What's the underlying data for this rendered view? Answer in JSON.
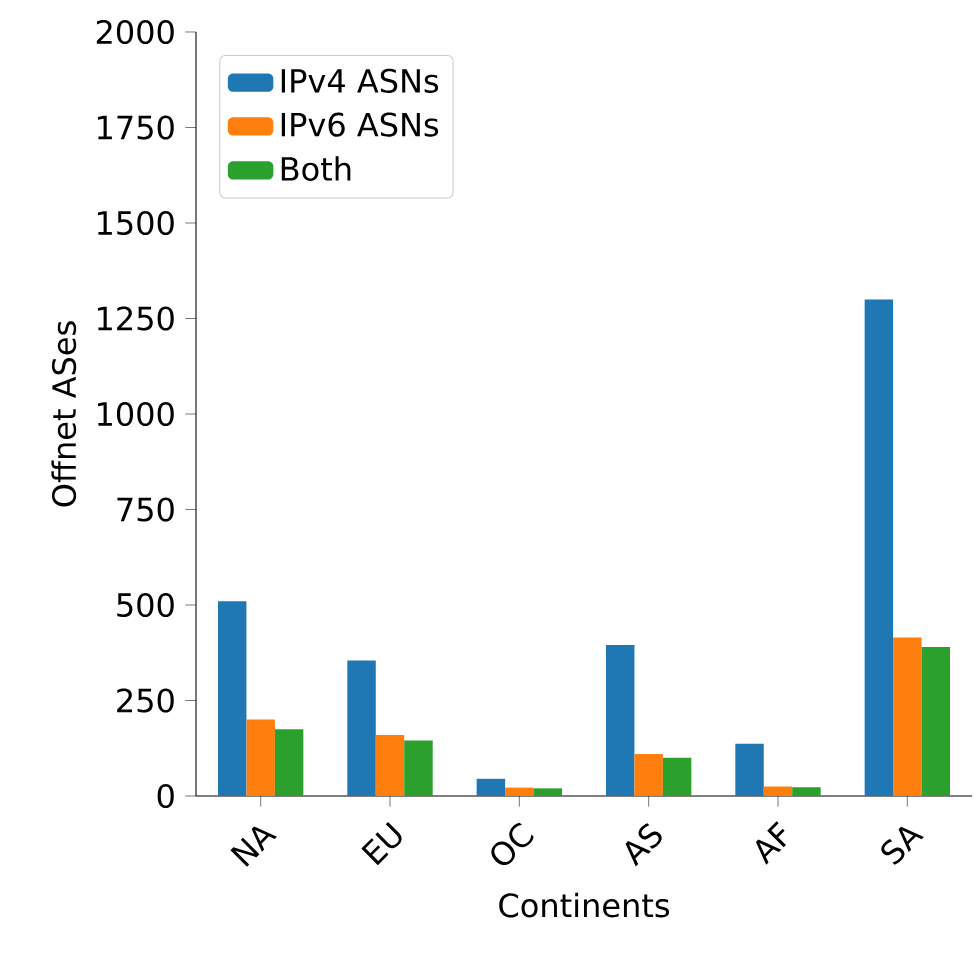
{
  "chart_data": {
    "type": "bar",
    "xlabel": "Continents",
    "ylabel": "Offnet ASes",
    "categories": [
      "NA",
      "EU",
      "OC",
      "AS",
      "AF",
      "SA"
    ],
    "series": [
      {
        "name": "IPv4 ASNs",
        "color": "#1f77b4",
        "values": [
          510,
          355,
          45,
          395,
          137,
          1300
        ]
      },
      {
        "name": "IPv6 ASNs",
        "color": "#ff7f0e",
        "values": [
          200,
          160,
          22,
          110,
          25,
          415
        ]
      },
      {
        "name": "Both",
        "color": "#2ca02c",
        "values": [
          175,
          145,
          20,
          100,
          23,
          390
        ]
      }
    ],
    "ylim": [
      0,
      2000
    ],
    "yticks": [
      0,
      250,
      500,
      750,
      1000,
      1250,
      1500,
      1750,
      2000
    ],
    "legend": "top left",
    "grid": false
  }
}
